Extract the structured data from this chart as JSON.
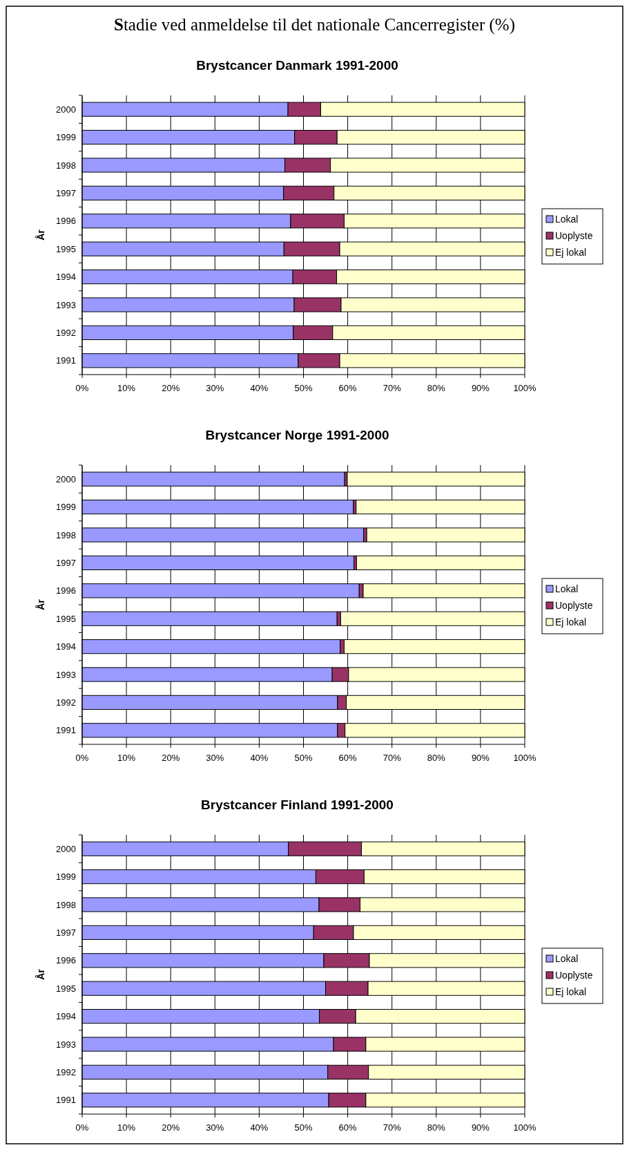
{
  "chart_data": [
    {
      "type": "bar",
      "orientation": "horizontal",
      "stacked": true,
      "title": "Brystcancer Danmark 1991-2000",
      "annotations": [
        "Stadie ved anmeldelse til det nationale Cancerregister (%)"
      ],
      "ylabel": "År",
      "categories": [
        "2000",
        "1999",
        "1998",
        "1997",
        "1996",
        "1995",
        "1994",
        "1993",
        "1992",
        "1991"
      ],
      "series": [
        {
          "name": "Lokal",
          "color": "#9999ff",
          "values": [
            46.5,
            48.0,
            45.8,
            45.5,
            47.1,
            45.6,
            47.6,
            47.9,
            47.7,
            48.8
          ]
        },
        {
          "name": "Uoplyste",
          "color": "#993366",
          "values": [
            7.4,
            9.6,
            10.3,
            11.4,
            12.1,
            12.6,
            9.9,
            10.6,
            8.9,
            9.4
          ]
        },
        {
          "name": "Ej lokal",
          "color": "#ffffcc",
          "values": [
            46.1,
            42.4,
            43.9,
            43.1,
            40.8,
            41.8,
            42.5,
            41.5,
            43.4,
            41.8
          ]
        }
      ],
      "xlim": [
        0,
        100
      ],
      "xticks": [
        {
          "value": 0,
          "label": "0%"
        },
        {
          "value": 10,
          "label": "10%"
        },
        {
          "value": 20,
          "label": "20%"
        },
        {
          "value": 30,
          "label": "30%"
        },
        {
          "value": 40,
          "label": "40%"
        },
        {
          "value": 50,
          "label": "50%"
        },
        {
          "value": 60,
          "label": "60%"
        },
        {
          "value": 70,
          "label": "70%"
        },
        {
          "value": 80,
          "label": "80%"
        },
        {
          "value": 90,
          "label": "90%"
        },
        {
          "value": 100,
          "label": "100%"
        }
      ],
      "grid": "x",
      "legend": "right"
    },
    {
      "type": "bar",
      "orientation": "horizontal",
      "stacked": true,
      "title": "Brystcancer Norge 1991-2000",
      "ylabel": "År",
      "categories": [
        "2000",
        "1999",
        "1998",
        "1997",
        "1996",
        "1995",
        "1994",
        "1993",
        "1992",
        "1991"
      ],
      "series": [
        {
          "name": "Lokal",
          "color": "#9999ff",
          "values": [
            59.3,
            61.3,
            63.6,
            61.4,
            62.6,
            57.6,
            58.3,
            56.5,
            57.7,
            57.7
          ]
        },
        {
          "name": "Uoplyste",
          "color": "#993366",
          "values": [
            0.6,
            0.6,
            0.7,
            0.6,
            0.9,
            0.8,
            0.9,
            3.7,
            2.0,
            1.7
          ]
        },
        {
          "name": "Ej lokal",
          "color": "#ffffcc",
          "values": [
            40.1,
            38.1,
            35.7,
            38.0,
            36.5,
            41.6,
            40.8,
            39.8,
            40.3,
            40.6
          ]
        }
      ],
      "xlim": [
        0,
        100
      ],
      "xticks": [
        {
          "value": 0,
          "label": "0%"
        },
        {
          "value": 10,
          "label": "10%"
        },
        {
          "value": 20,
          "label": "20%"
        },
        {
          "value": 30,
          "label": "30%"
        },
        {
          "value": 40,
          "label": "40%"
        },
        {
          "value": 50,
          "label": "50%"
        },
        {
          "value": 60,
          "label": "60%"
        },
        {
          "value": 70,
          "label": "70%"
        },
        {
          "value": 80,
          "label": "80%"
        },
        {
          "value": 90,
          "label": "90%"
        },
        {
          "value": 100,
          "label": "100%"
        }
      ],
      "grid": "x",
      "legend": "right"
    },
    {
      "type": "bar",
      "orientation": "horizontal",
      "stacked": true,
      "title": "Brystcancer Finland 1991-2000",
      "ylabel": "År",
      "categories": [
        "2000",
        "1999",
        "1998",
        "1997",
        "1996",
        "1995",
        "1994",
        "1993",
        "1992",
        "1991"
      ],
      "series": [
        {
          "name": "Lokal",
          "color": "#9999ff",
          "values": [
            46.6,
            52.8,
            53.5,
            52.3,
            54.6,
            55.0,
            53.6,
            56.8,
            55.5,
            55.7
          ]
        },
        {
          "name": "Uoplyste",
          "color": "#993366",
          "values": [
            16.5,
            10.9,
            9.3,
            9.0,
            10.3,
            9.6,
            8.2,
            7.3,
            9.2,
            8.4
          ]
        },
        {
          "name": "Ej lokal",
          "color": "#ffffcc",
          "values": [
            36.9,
            36.3,
            37.2,
            38.7,
            35.1,
            35.4,
            38.2,
            35.9,
            35.3,
            35.9
          ]
        }
      ],
      "xlim": [
        0,
        100
      ],
      "xticks": [
        {
          "value": 0,
          "label": "0%"
        },
        {
          "value": 10,
          "label": "10%"
        },
        {
          "value": 20,
          "label": "20%"
        },
        {
          "value": 30,
          "label": "30%"
        },
        {
          "value": 40,
          "label": "40%"
        },
        {
          "value": 50,
          "label": "50%"
        },
        {
          "value": 60,
          "label": "60%"
        },
        {
          "value": 70,
          "label": "70%"
        },
        {
          "value": 80,
          "label": "80%"
        },
        {
          "value": 90,
          "label": "90%"
        },
        {
          "value": 100,
          "label": "100%"
        }
      ],
      "grid": "x",
      "legend": "right"
    }
  ]
}
